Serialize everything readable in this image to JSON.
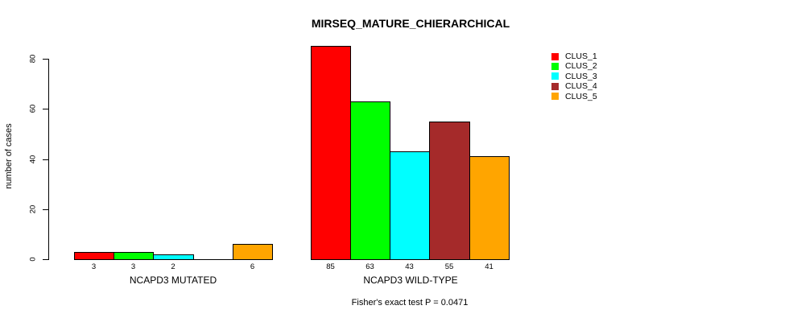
{
  "chart_data": {
    "type": "bar",
    "title": "MIRSEQ_MATURE_CHIERARCHICAL",
    "xlabel": "",
    "ylabel": "number of cases",
    "categories": [
      "NCAPD3 MUTATED",
      "NCAPD3 WILD-TYPE"
    ],
    "series": [
      {
        "name": "CLUS_1",
        "color": "#FF0000",
        "values": [
          3,
          85
        ]
      },
      {
        "name": "CLUS_2",
        "color": "#00FF00",
        "values": [
          3,
          63
        ]
      },
      {
        "name": "CLUS_3",
        "color": "#00FFFF",
        "values": [
          2,
          43
        ]
      },
      {
        "name": "CLUS_4",
        "color": "#A52A2A",
        "values": [
          0,
          55
        ]
      },
      {
        "name": "CLUS_5",
        "color": "#FFA500",
        "values": [
          6,
          41
        ]
      }
    ],
    "bar_value_labels": [
      [
        "3",
        "3",
        "2",
        "",
        "6"
      ],
      [
        "85",
        "63",
        "43",
        "55",
        "41"
      ]
    ],
    "y_ticks": [
      0,
      20,
      40,
      60,
      80
    ],
    "ylim": [
      0,
      85
    ],
    "grid": false,
    "legend_position": "topright",
    "bar_outline_color": "#000000",
    "text_color": "#000000",
    "background": "#FFFFFF",
    "annotation": "Fisher's exact test P = 0.0471"
  }
}
